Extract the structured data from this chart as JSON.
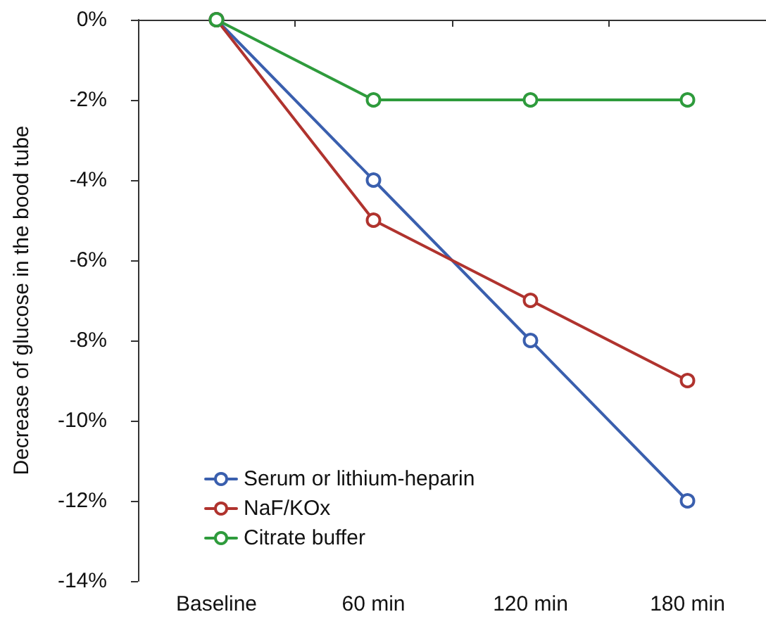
{
  "chart_data": {
    "type": "line",
    "ylabel": "Decrease of glucose in the bood tube",
    "categories": [
      "Baseline",
      "60 min",
      "120 min",
      "180 min"
    ],
    "series": [
      {
        "name": "Serum or lithium-heparin",
        "color": "#3a5fae",
        "values": [
          0,
          -4,
          -8,
          -12
        ]
      },
      {
        "name": "NaF/KOx",
        "color": "#b0332e",
        "values": [
          0,
          -5,
          -7,
          -9
        ]
      },
      {
        "name": "Citrate buffer",
        "color": "#2e9b3c",
        "values": [
          0,
          -2,
          -2,
          -2
        ]
      }
    ],
    "ylim": [
      -14,
      0
    ],
    "yticks": [
      {
        "value": -14,
        "label": "-14%"
      },
      {
        "value": -12,
        "label": "-12%"
      },
      {
        "value": -10,
        "label": "-10%"
      },
      {
        "value": -8,
        "label": "-8%"
      },
      {
        "value": -6,
        "label": "-6%"
      },
      {
        "value": -4,
        "label": "-4%"
      },
      {
        "value": -2,
        "label": "-2%"
      },
      {
        "value": 0,
        "label": "0%"
      }
    ],
    "grid": false,
    "legend": "bottom left",
    "marker": "circle",
    "line_style": "solid"
  }
}
